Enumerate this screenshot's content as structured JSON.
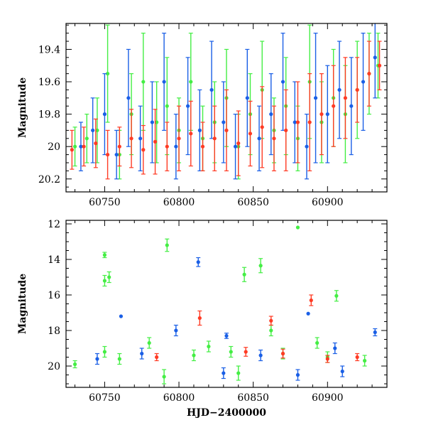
{
  "chart_data": [
    {
      "type": "scatter",
      "title": "",
      "xlabel": "",
      "ylabel": "Magnitude",
      "xlim": [
        60724,
        60940
      ],
      "ylim": [
        20.28,
        19.24
      ],
      "y_inverted": true,
      "x_ticks": [
        60750,
        60800,
        60850,
        60900
      ],
      "x_tick_labels": [
        "60750",
        "60800",
        "60850",
        "60900"
      ],
      "y_ticks": [
        19.4,
        19.6,
        19.8,
        20,
        20.2
      ],
      "y_tick_labels": [
        "19.4",
        "19.6",
        "19.8",
        "20",
        "20.2"
      ],
      "grid": false,
      "legend": "none",
      "series": [
        {
          "color": "#44ee44",
          "x": [
            60730,
            60738,
            60745,
            60752,
            60760,
            60768,
            60776,
            60785,
            60792,
            60800,
            60808,
            60816,
            60824,
            60832,
            60840,
            60848,
            60856,
            60864,
            60872,
            60880,
            60888,
            60896,
            60904,
            60912,
            60920,
            60928,
            60934
          ],
          "y": [
            20.0,
            19.95,
            19.9,
            19.55,
            20.05,
            19.8,
            19.6,
            19.85,
            19.75,
            19.9,
            19.6,
            19.95,
            19.85,
            19.7,
            20.0,
            19.8,
            19.65,
            19.9,
            19.75,
            19.95,
            19.6,
            19.85,
            19.7,
            19.8,
            19.65,
            19.55,
            19.5
          ],
          "err": [
            0.12,
            0.15,
            0.2,
            0.3,
            0.15,
            0.25,
            0.3,
            0.25,
            0.3,
            0.2,
            0.3,
            0.2,
            0.25,
            0.3,
            0.2,
            0.25,
            0.3,
            0.2,
            0.3,
            0.2,
            0.35,
            0.25,
            0.3,
            0.3,
            0.3,
            0.25,
            0.2
          ]
        },
        {
          "color": "#1a5fe6",
          "x": [
            60734,
            60742,
            60750,
            60758,
            60766,
            60774,
            60782,
            60790,
            60798,
            60806,
            60814,
            60822,
            60830,
            60838,
            60846,
            60854,
            60862,
            60870,
            60878,
            60886,
            60892,
            60900,
            60908,
            60916,
            60924,
            60932
          ],
          "y": [
            20.0,
            19.9,
            19.8,
            20.05,
            19.7,
            19.95,
            19.85,
            19.6,
            20.0,
            19.75,
            19.9,
            19.65,
            19.85,
            20.0,
            19.7,
            19.95,
            19.8,
            19.6,
            19.85,
            20.0,
            19.7,
            19.8,
            19.65,
            19.75,
            19.6,
            19.45
          ],
          "err": [
            0.15,
            0.2,
            0.25,
            0.15,
            0.3,
            0.2,
            0.25,
            0.3,
            0.2,
            0.3,
            0.25,
            0.3,
            0.25,
            0.2,
            0.3,
            0.2,
            0.25,
            0.3,
            0.25,
            0.2,
            0.4,
            0.3,
            0.3,
            0.3,
            0.3,
            0.25
          ]
        },
        {
          "color": "#ff3b24",
          "x": [
            60728,
            60736,
            60744,
            60752,
            60760,
            60768,
            60776,
            60784,
            60792,
            60800,
            60808,
            60816,
            60824,
            60832,
            60840,
            60848,
            60856,
            60864,
            60872,
            60880,
            60888,
            60896,
            60904,
            60912,
            60920,
            60928,
            60935
          ],
          "y": [
            20.02,
            20.0,
            19.98,
            20.05,
            20.0,
            19.95,
            20.02,
            19.97,
            20.0,
            19.95,
            19.92,
            20.0,
            19.95,
            19.9,
            19.98,
            19.92,
            19.88,
            19.95,
            19.9,
            19.85,
            19.85,
            19.8,
            19.75,
            19.7,
            19.65,
            19.55,
            19.5
          ],
          "err": [
            0.12,
            0.12,
            0.15,
            0.15,
            0.12,
            0.18,
            0.15,
            0.2,
            0.15,
            0.2,
            0.2,
            0.15,
            0.2,
            0.25,
            0.2,
            0.2,
            0.25,
            0.2,
            0.25,
            0.25,
            0.3,
            0.25,
            0.25,
            0.25,
            0.2,
            0.2,
            0.15
          ]
        }
      ]
    },
    {
      "type": "scatter",
      "title": "",
      "xlabel": "HJD−2400000",
      "ylabel": "Magnitude",
      "xlim": [
        60724,
        60940
      ],
      "ylim": [
        21.2,
        11.8
      ],
      "y_inverted": true,
      "x_ticks": [
        60750,
        60800,
        60850,
        60900
      ],
      "x_tick_labels": [
        "60750",
        "60800",
        "60850",
        "60900"
      ],
      "y_ticks": [
        12,
        14,
        16,
        18,
        20
      ],
      "y_tick_labels": [
        "12",
        "14",
        "16",
        "18",
        "20"
      ],
      "grid": false,
      "legend": "none",
      "series": [
        {
          "color": "#44ee44",
          "x": [
            60730,
            60750,
            60750,
            60753,
            60750,
            60792,
            60844,
            60855,
            60880,
            60906,
            60780,
            60820,
            60862,
            60893,
            60870,
            60760,
            60810,
            60835,
            60900,
            60925,
            60790,
            60840
          ],
          "y": [
            19.9,
            13.75,
            15.2,
            15.0,
            19.2,
            13.2,
            14.85,
            14.35,
            12.2,
            16.05,
            18.7,
            18.9,
            18.0,
            18.7,
            19.3,
            19.6,
            19.4,
            19.2,
            19.5,
            19.7,
            20.6,
            20.4
          ],
          "err": [
            0.2,
            0.15,
            0.3,
            0.3,
            0.3,
            0.35,
            0.4,
            0.4,
            0.0,
            0.3,
            0.3,
            0.3,
            0.3,
            0.3,
            0.3,
            0.3,
            0.3,
            0.3,
            0.3,
            0.3,
            0.4,
            0.4
          ]
        },
        {
          "color": "#1a5fe6",
          "x": [
            60761,
            60813,
            60798,
            60832,
            60887,
            60932,
            60745,
            60775,
            60855,
            60905,
            60830,
            60880,
            60910
          ],
          "y": [
            17.2,
            14.15,
            18.0,
            18.3,
            17.05,
            18.1,
            19.6,
            19.3,
            19.4,
            19.0,
            20.4,
            20.5,
            20.3
          ],
          "err": [
            0.0,
            0.25,
            0.3,
            0.15,
            0.0,
            0.2,
            0.3,
            0.3,
            0.3,
            0.3,
            0.3,
            0.3,
            0.3
          ]
        },
        {
          "color": "#ff3b24",
          "x": [
            60814,
            60862,
            60889,
            60785,
            60845,
            60870,
            60900,
            60920
          ],
          "y": [
            17.3,
            17.45,
            16.3,
            19.5,
            19.2,
            19.3,
            19.6,
            19.5
          ],
          "err": [
            0.4,
            0.25,
            0.3,
            0.2,
            0.25,
            0.25,
            0.2,
            0.2
          ]
        }
      ]
    }
  ]
}
